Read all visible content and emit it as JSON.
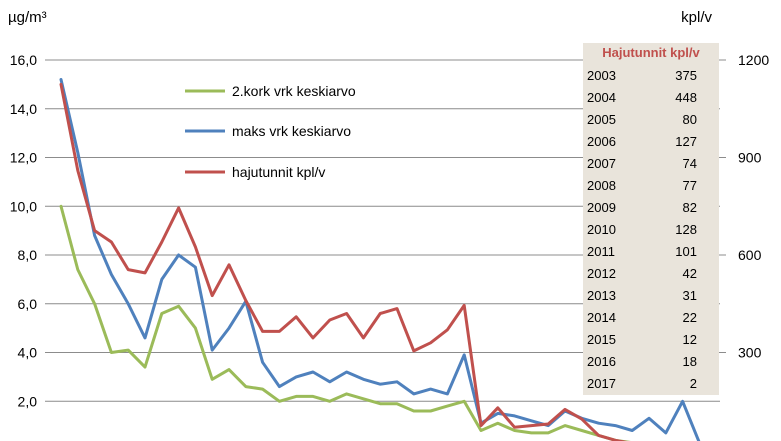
{
  "chart_data": {
    "type": "line",
    "left_axis_unit": "µg/m³",
    "right_axis_unit": "kpl/v",
    "ylim": [
      0,
      16
    ],
    "y2lim": [
      0,
      1200
    ],
    "yticks": [
      "16,0",
      "14,0",
      "12,0",
      "10,0",
      "8,0",
      "6,0",
      "4,0",
      "2,0"
    ],
    "y2ticks": [
      "1200",
      "900",
      "600",
      "300"
    ],
    "grid": true,
    "legend_position": "upper-center",
    "series": [
      {
        "name": "2.kork vrk keskiarvo",
        "color": "#9bbb59",
        "axis": "left",
        "values": [
          10.0,
          7.4,
          6.0,
          4.0,
          4.1,
          3.4,
          5.6,
          5.9,
          5.0,
          2.9,
          3.3,
          2.6,
          2.5,
          2.0,
          2.2,
          2.2,
          2.0,
          2.3,
          2.1,
          1.9,
          1.9,
          1.6,
          1.6,
          1.8,
          2.0,
          0.8,
          1.1,
          0.8,
          0.7,
          0.7,
          1.0,
          0.8,
          0.6,
          0.4,
          0.3,
          0.2,
          0.0,
          -0.2,
          -0.5
        ]
      },
      {
        "name": "maks vrk keskiarvo",
        "color": "#4f81bd",
        "axis": "left",
        "values": [
          15.2,
          12.2,
          8.8,
          7.2,
          6.0,
          4.6,
          7.0,
          8.0,
          7.5,
          4.1,
          5.0,
          6.1,
          3.6,
          2.6,
          3.0,
          3.2,
          2.8,
          3.2,
          2.9,
          2.7,
          2.8,
          2.3,
          2.5,
          2.3,
          3.9,
          1.1,
          1.5,
          1.4,
          1.2,
          1.0,
          1.6,
          1.3,
          1.1,
          1.0,
          0.8,
          1.3,
          0.7,
          2.0,
          0.3
        ]
      },
      {
        "name": "hajutunnit kpl/v",
        "color": "#c0504d",
        "axis": "right",
        "values": [
          1125,
          860,
          675,
          640,
          555,
          545,
          640,
          745,
          625,
          475,
          570,
          460,
          365,
          365,
          410,
          345,
          400,
          420,
          345,
          420,
          435,
          305,
          330,
          370,
          445,
          75,
          130,
          70,
          75,
          80,
          125,
          95,
          45,
          30,
          20,
          12,
          8,
          4,
          2
        ]
      }
    ],
    "inset_table": {
      "title": "Hajutunnit kpl/v",
      "rows": [
        {
          "year": "2003",
          "value": "375"
        },
        {
          "year": "2004",
          "value": "448"
        },
        {
          "year": "2005",
          "value": "80"
        },
        {
          "year": "2006",
          "value": "127"
        },
        {
          "year": "2007",
          "value": "74"
        },
        {
          "year": "2008",
          "value": "77"
        },
        {
          "year": "2009",
          "value": "82"
        },
        {
          "year": "2010",
          "value": "128"
        },
        {
          "year": "2011",
          "value": "101"
        },
        {
          "year": "2012",
          "value": "42"
        },
        {
          "year": "2013",
          "value": "31"
        },
        {
          "year": "2014",
          "value": "22"
        },
        {
          "year": "2015",
          "value": "12"
        },
        {
          "year": "2016",
          "value": "18"
        },
        {
          "year": "2017",
          "value": "2"
        }
      ]
    }
  }
}
